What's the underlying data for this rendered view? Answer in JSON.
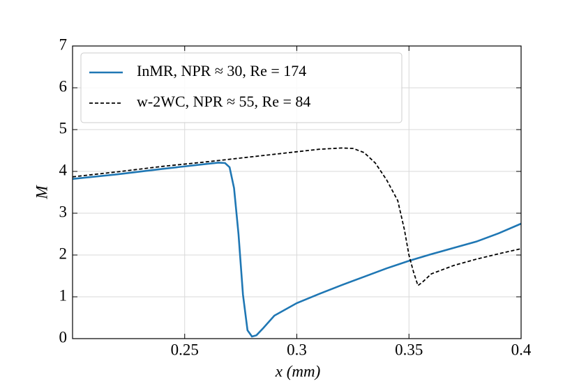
{
  "chart_data": {
    "type": "line",
    "xlabel": "x  (mm)",
    "ylabel": "M",
    "xlim": [
      0.2,
      0.4
    ],
    "xticks": [
      0.25,
      0.3,
      0.35,
      0.4
    ],
    "ylim": [
      0,
      7
    ],
    "yticks": [
      0,
      1,
      2,
      3,
      4,
      5,
      6,
      7
    ],
    "grid": true,
    "legend": "upper left",
    "series": [
      {
        "name": "InMR, NPR ≈ 30, Re = 174",
        "color": "#1f77b4",
        "style": "solid",
        "x": [
          0.2,
          0.22,
          0.24,
          0.26,
          0.265,
          0.268,
          0.27,
          0.272,
          0.274,
          0.276,
          0.278,
          0.28,
          0.282,
          0.285,
          0.29,
          0.3,
          0.31,
          0.32,
          0.33,
          0.34,
          0.35,
          0.36,
          0.37,
          0.38,
          0.39,
          0.4
        ],
        "values": [
          3.82,
          3.93,
          4.06,
          4.18,
          4.21,
          4.2,
          4.1,
          3.6,
          2.5,
          1.05,
          0.2,
          0.05,
          0.08,
          0.25,
          0.55,
          0.85,
          1.07,
          1.28,
          1.48,
          1.68,
          1.86,
          2.02,
          2.17,
          2.32,
          2.52,
          2.75
        ]
      },
      {
        "name": "w-2WC, NPR ≈ 55, Re = 84",
        "color": "#000000",
        "style": "dashed",
        "x": [
          0.2,
          0.22,
          0.24,
          0.26,
          0.28,
          0.3,
          0.31,
          0.32,
          0.325,
          0.33,
          0.335,
          0.34,
          0.345,
          0.348,
          0.35,
          0.352,
          0.354,
          0.356,
          0.36,
          0.37,
          0.38,
          0.39,
          0.4
        ],
        "values": [
          3.87,
          3.99,
          4.12,
          4.23,
          4.35,
          4.47,
          4.53,
          4.56,
          4.55,
          4.45,
          4.2,
          3.8,
          3.3,
          2.6,
          2.0,
          1.6,
          1.27,
          1.35,
          1.55,
          1.75,
          1.9,
          2.03,
          2.15
        ]
      }
    ]
  }
}
